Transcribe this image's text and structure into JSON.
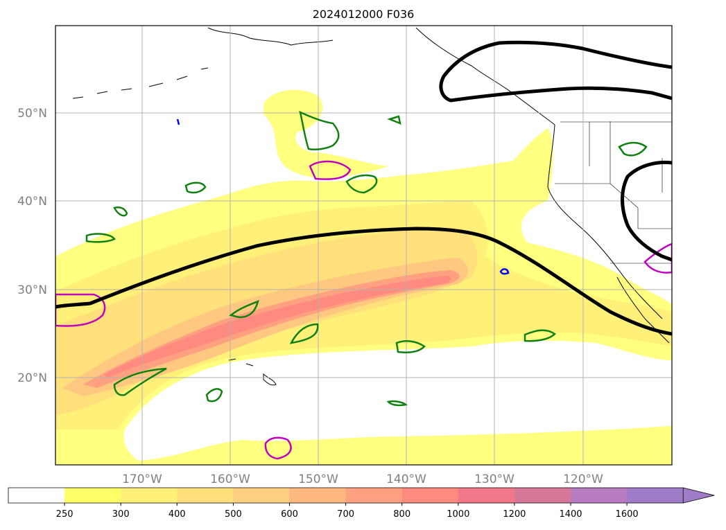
{
  "title": "2024012000 F036",
  "map": {
    "latitude_labels": [
      "50°N",
      "40°N",
      "30°N",
      "20°N"
    ],
    "longitude_labels": [
      "170°W",
      "160°W",
      "150°W",
      "140°W",
      "130°W",
      "120°W"
    ],
    "gridlines": true
  },
  "colorbar": {
    "tick_labels": [
      "250",
      "300",
      "400",
      "500",
      "600",
      "700",
      "800",
      "1000",
      "1200",
      "1400",
      "1600"
    ],
    "colors": [
      "#ffffff",
      "#ffff66",
      "#fff07a",
      "#ffe07a",
      "#ffd080",
      "#ffb880",
      "#ffa080",
      "#ff8a80",
      "#f07888",
      "#d87898",
      "#b87cc0",
      "#a07cc8"
    ],
    "extend": "max"
  },
  "colors": {
    "contour_line": "#000000",
    "green_outline": "#108010",
    "magenta_outline": "#c000c0",
    "blue_outline": "#0000ff"
  }
}
